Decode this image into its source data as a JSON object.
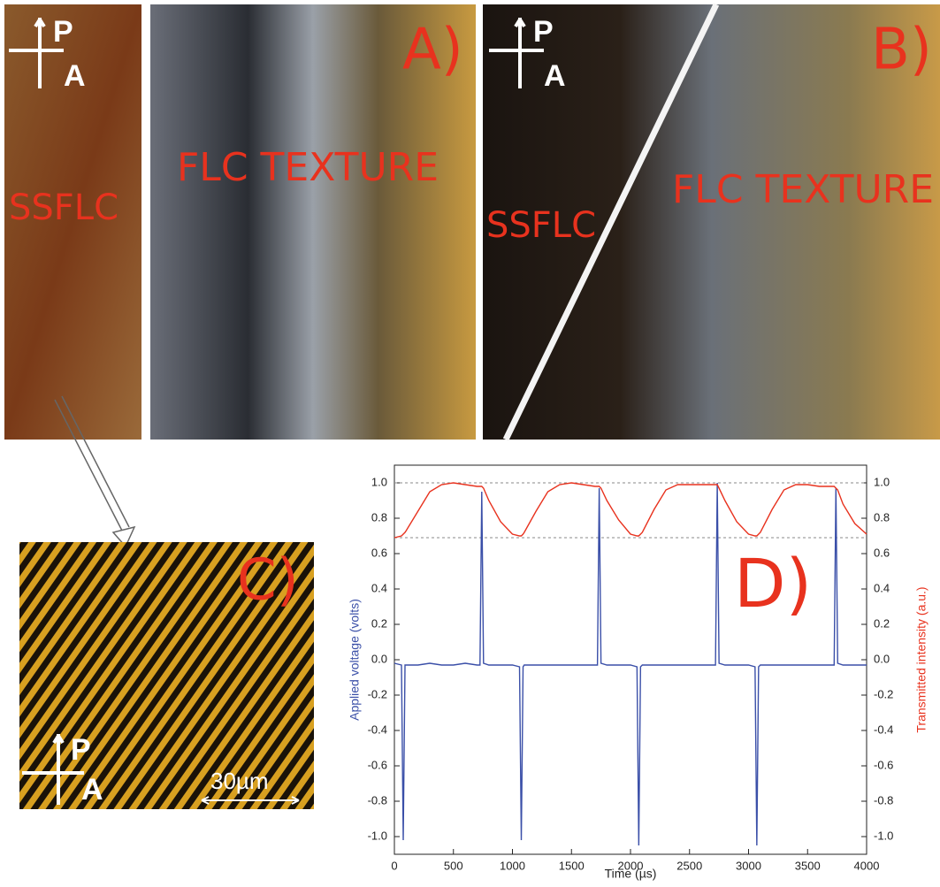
{
  "panels": {
    "a": {
      "left_label": "SSFLC",
      "right_label": "FLC TEXTURE",
      "label": "A)",
      "polarizer": "P",
      "analyzer": "A"
    },
    "b": {
      "left_label": "SSFLC",
      "right_label": "FLC TEXTURE",
      "label": "B)",
      "polarizer": "P",
      "analyzer": "A"
    },
    "c": {
      "label": "C)",
      "scale_bar": "30µm",
      "polarizer": "P",
      "analyzer": "A"
    }
  },
  "chart_data": {
    "type": "line",
    "annotation": "D)",
    "x_label": "Time (µs)",
    "y_label": "Applied voltage (volts)",
    "y2_label": "Transmitted intensity (a.u.)",
    "xlim": [
      0,
      4000
    ],
    "xticks": [
      0,
      500,
      1000,
      1500,
      2000,
      2500,
      3000,
      3500,
      4000
    ],
    "ylim": [
      -1.1,
      1.1
    ],
    "yticks": [
      {
        "value": -1,
        "label": "-1.0"
      },
      -0.8,
      -0.6,
      -0.4,
      -0.2,
      {
        "value": 0,
        "label": "0.0"
      },
      0.2,
      0.4,
      0.6,
      0.8,
      {
        "value": 1,
        "label": "1.0"
      }
    ],
    "y2lim": [
      -1.1,
      1.1
    ],
    "y2ticks": [
      {
        "value": -1,
        "label": "-1.0"
      },
      -0.8,
      -0.6,
      -0.4,
      -0.2,
      {
        "value": 0,
        "label": "0.0"
      },
      0.2,
      0.4,
      0.6,
      0.8,
      {
        "value": 1,
        "label": "1.0"
      }
    ],
    "y2_reference_lines": [
      1,
      0.69
    ],
    "x": [
      0,
      60,
      75,
      90,
      100,
      200,
      300,
      400,
      500,
      600,
      700,
      725,
      740,
      755,
      800,
      900,
      1000,
      1060,
      1075,
      1090,
      1100,
      1200,
      1300,
      1400,
      1500,
      1600,
      1700,
      1720,
      1735,
      1750,
      1800,
      1900,
      2000,
      2055,
      2070,
      2085,
      2100,
      2200,
      2300,
      2400,
      2500,
      2600,
      2700,
      2720,
      2735,
      2750,
      2800,
      2900,
      3000,
      3055,
      3070,
      3085,
      3100,
      3200,
      3300,
      3400,
      3500,
      3600,
      3700,
      3725,
      3740,
      3755,
      3800,
      3900,
      4000
    ],
    "series": [
      {
        "color": "#3a4fa8",
        "values": [
          -0.02,
          -0.03,
          -1.02,
          -0.03,
          -0.03,
          -0.03,
          -0.02,
          -0.03,
          -0.03,
          -0.02,
          -0.03,
          -0.03,
          0.95,
          -0.02,
          -0.03,
          -0.03,
          -0.03,
          -0.04,
          -1.02,
          -0.04,
          -0.03,
          -0.03,
          -0.03,
          -0.03,
          -0.03,
          -0.03,
          -0.03,
          -0.03,
          0.97,
          -0.02,
          -0.03,
          -0.03,
          -0.03,
          -0.04,
          -1.05,
          -0.04,
          -0.03,
          -0.03,
          -0.03,
          -0.03,
          -0.03,
          -0.03,
          -0.03,
          -0.03,
          1.0,
          -0.02,
          -0.03,
          -0.03,
          -0.03,
          -0.04,
          -1.05,
          -0.04,
          -0.03,
          -0.03,
          -0.03,
          -0.03,
          -0.03,
          -0.03,
          -0.03,
          -0.03,
          0.97,
          -0.02,
          -0.03,
          -0.03,
          -0.03
        ]
      },
      {
        "color": "#e8321e",
        "axis": "y2",
        "values": [
          0.69,
          0.7,
          0.71,
          0.72,
          0.73,
          0.84,
          0.95,
          0.99,
          1.0,
          0.99,
          0.98,
          0.98,
          0.98,
          0.97,
          0.9,
          0.78,
          0.71,
          0.7,
          0.7,
          0.71,
          0.72,
          0.84,
          0.95,
          0.99,
          1.0,
          0.99,
          0.98,
          0.98,
          0.98,
          0.97,
          0.9,
          0.79,
          0.71,
          0.7,
          0.7,
          0.71,
          0.72,
          0.85,
          0.96,
          0.99,
          0.99,
          0.99,
          0.99,
          0.99,
          0.99,
          0.97,
          0.9,
          0.78,
          0.71,
          0.7,
          0.7,
          0.71,
          0.72,
          0.85,
          0.96,
          0.99,
          0.99,
          0.98,
          0.98,
          0.98,
          0.97,
          0.96,
          0.88,
          0.77,
          0.71
        ]
      }
    ]
  }
}
